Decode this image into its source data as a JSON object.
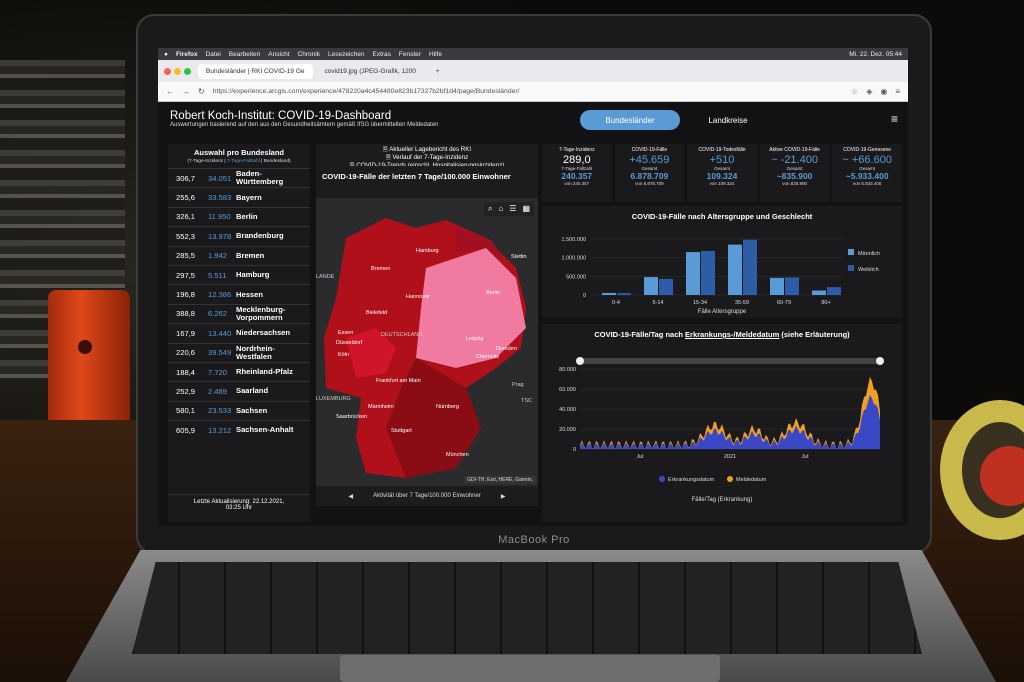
{
  "menubar": {
    "items": [
      "Firefox",
      "Datei",
      "Bearbeiten",
      "Ansicht",
      "Chronik",
      "Lesezeichen",
      "Extras",
      "Fenster",
      "Hilfe"
    ],
    "clock": "Mi. 22. Dez.  05:44"
  },
  "browser": {
    "tab1": "Bundesländer | RKI COVID-19 Ge",
    "tab2": "covid19.jpg (JPEG-Grafik, 1200",
    "url": "https://experience.arcgis.com/experience/478220a4c454480e823b17327b2bf1d4/page/Bundesländer/"
  },
  "dashboard": {
    "title": "Robert Koch-Institut: COVID-19-Dashboard",
    "subtitle": "Auswertungen basierend auf den aus den Gesundheitsämtern gemäß IfSG übermittelten Meldedaten",
    "btn_bundeslaender": "Bundesländer",
    "btn_landkreise": "Landkreise"
  },
  "sidebar": {
    "heading": "Auswahl pro Bundesland",
    "sub_a": "(7-Tage-Inzidenz | ",
    "sub_b": "7-Tage-Fallzahl",
    "sub_c": " | Bundesland)",
    "rows": [
      {
        "inz": "306,7",
        "fz": "34.051",
        "name": "Baden-\nWürttemberg"
      },
      {
        "inz": "255,6",
        "fz": "33.583",
        "name": "Bayern"
      },
      {
        "inz": "326,1",
        "fz": "11.950",
        "name": "Berlin"
      },
      {
        "inz": "552,3",
        "fz": "13.978",
        "name": "Brandenburg"
      },
      {
        "inz": "285,5",
        "fz": "1.942",
        "name": "Bremen"
      },
      {
        "inz": "297,5",
        "fz": "5.511",
        "name": "Hamburg"
      },
      {
        "inz": "196,8",
        "fz": "12.386",
        "name": "Hessen"
      },
      {
        "inz": "388,8",
        "fz": "6.262",
        "name": "Mecklenburg-\nVorpommern"
      },
      {
        "inz": "167,9",
        "fz": "13.440",
        "name": "Niedersachsen"
      },
      {
        "inz": "220,6",
        "fz": "39.549",
        "name": "Nordrhein-\nWestfalen"
      },
      {
        "inz": "188,4",
        "fz": "7.720",
        "name": "Rheinland-Pfalz"
      },
      {
        "inz": "252,9",
        "fz": "2.489",
        "name": "Saarland"
      },
      {
        "inz": "580,1",
        "fz": "23.533",
        "name": "Sachsen"
      },
      {
        "inz": "605,9",
        "fz": "13.212",
        "name": "Sachsen-Anhalt"
      }
    ],
    "update": "Letzte Aktualisierung: 22.12.2021,\n03:25 Uhr"
  },
  "map": {
    "links": "🗎 Aktueller Lagebericht des RKI\n🗎 Verlauf der 7-Tage-Inzidenz\n🗎 COVID-19-Trends (einschl. Hospitalisierungsinzidenz)",
    "title": "COVID-19-Fälle der letzten 7 Tage/100.000 Einwohner",
    "cities": [
      "Hamburg",
      "Bremen",
      "Stettin",
      "Hannover",
      "Berlin",
      "Bielefeld",
      "Essen",
      "Düsseldorf",
      "Köln",
      "Leipzig",
      "Dresden",
      "Chemnitz",
      "Frankfurt am Main",
      "Mannheim",
      "Saarbrücken",
      "Nürnberg",
      "Stuttgart",
      "München",
      "Prag",
      "DEUTSCHLAND",
      "LANDE",
      "LUXEMBURG",
      "TSC"
    ],
    "attribution": "GDI-TH, Esri, HERE, Garmin,",
    "footer": "Aktivität über 7 Tage/100.000 Einwohner"
  },
  "kpis": [
    {
      "label": "7-Tage-Inzidenz",
      "value": "289,0",
      "sub": "7-Tage-Fallzahl",
      "sub2": "240.357",
      "sub3": "von 240.357"
    },
    {
      "label": "COVID-19-Fälle",
      "value": "+45.659",
      "sub": "Gesamt",
      "sub2": "6.878.709",
      "sub3": "von 6.878.709"
    },
    {
      "label": "COVID-19-Todesfälle",
      "value": "+510",
      "sub": "Gesamt",
      "sub2": "109.324",
      "sub3": "von 109.324"
    },
    {
      "label": "Aktive COVID-19-Fälle",
      "value": "~ -21.400",
      "sub": "Gesamt",
      "sub2": "~835.900",
      "sub3": "von 835.900"
    },
    {
      "label": "COVID-19-Genesene",
      "value": "~ +66.600",
      "sub": "Gesamt",
      "sub2": "~5.933.400",
      "sub3": "von 5.933.400"
    }
  ],
  "chart1": {
    "title": "COVID-19-Fälle nach Altersgruppe und Geschlecht",
    "xlabel": "Fälle Altersgruppe",
    "legend": [
      "Männlich",
      "Weiblich"
    ],
    "categories": [
      "0-4",
      "5-14",
      "15-34",
      "35-59",
      "60-79",
      "80+"
    ],
    "yticks": [
      "1.500.000",
      "1.000.000",
      "500.000",
      "0"
    ],
    "male": [
      55000,
      480000,
      1150000,
      1350000,
      460000,
      120000
    ],
    "female": [
      50000,
      430000,
      1180000,
      1480000,
      470000,
      210000
    ]
  },
  "chart2": {
    "title": "COVID-19-Fälle/Tag nach ",
    "title_u": "Erkrankungs-/Meldedatum",
    "title_end": " (siehe Erläuterung)",
    "yticks": [
      "80.000",
      "60.000",
      "40.000",
      "20.000",
      "0"
    ],
    "xticks": [
      "Jul",
      "2021",
      "Jul"
    ],
    "legend": [
      "Erkrankungsdatum",
      "Meldedatum"
    ],
    "xlabel": "Fälle/Tag (Erkrankung)"
  },
  "laptop": {
    "brand": "MacBook Pro"
  },
  "colors": {
    "accent": "#5b9bd5",
    "map_dark": "#b0101a",
    "map_light": "#f07aa0",
    "orange": "#f0a020",
    "blue": "#3a48c8"
  }
}
